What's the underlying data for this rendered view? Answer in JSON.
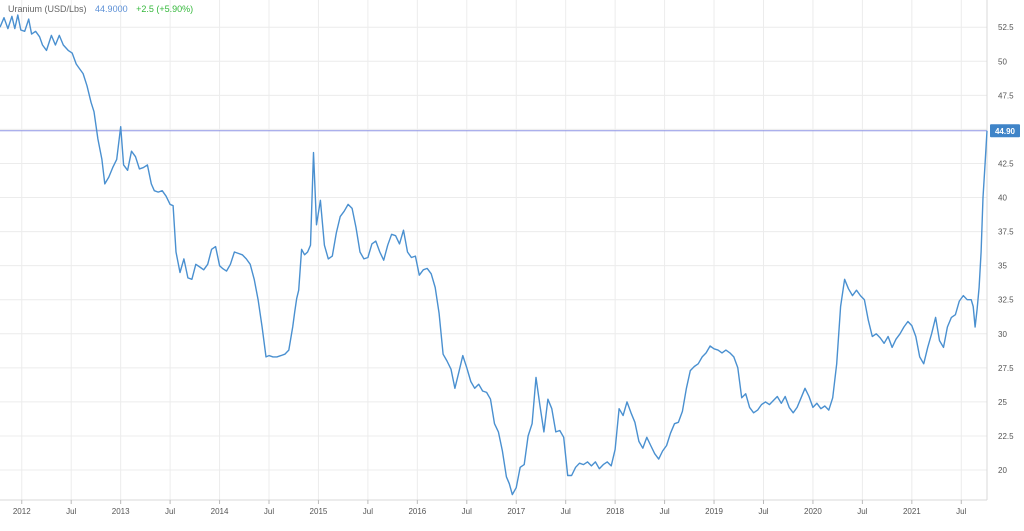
{
  "legend": {
    "name": "Uranium (USD/Lbs)",
    "value": "44.9000",
    "change": "+2.5 (+5.90%)"
  },
  "colors": {
    "line": "#4a90d0",
    "last_line": "#8f95e6",
    "badge": "#3f84c8",
    "grid": "#ececec",
    "change_up": "#34b83b"
  },
  "chart_data": {
    "type": "line",
    "last_value_label": "44.90",
    "last_value": 44.9,
    "ylim": [
      17.8,
      54.5
    ],
    "y_ticks": [
      20,
      22.5,
      25,
      27.5,
      30,
      32.5,
      35,
      37.5,
      40,
      42.5,
      45,
      47.5,
      50,
      52.5
    ],
    "y_tick_labels": [
      "20",
      "22.5",
      "25",
      "27.5",
      "30",
      "32.5",
      "35",
      "37.5",
      "40",
      "42.5",
      "45",
      "47.5",
      "50",
      "52.5"
    ],
    "x_range": [
      2011.78,
      2021.76
    ],
    "x_ticks": [
      2012.0,
      2012.5,
      2013.0,
      2013.5,
      2014.0,
      2014.5,
      2015.0,
      2015.5,
      2016.0,
      2016.5,
      2017.0,
      2017.5,
      2018.0,
      2018.5,
      2019.0,
      2019.5,
      2020.0,
      2020.5,
      2021.0,
      2021.5
    ],
    "x_tick_labels": [
      "2012",
      "Jul",
      "2013",
      "Jul",
      "2014",
      "Jul",
      "2015",
      "Jul",
      "2016",
      "Jul",
      "2017",
      "Jul",
      "2018",
      "Jul",
      "2019",
      "Jul",
      "2020",
      "Jul",
      "2021",
      "Jul"
    ],
    "series": [
      {
        "x": [
          2011.78,
          2011.82,
          2011.86,
          2011.9,
          2011.93,
          2011.96,
          2011.99,
          2012.03,
          2012.07,
          2012.1,
          2012.14,
          2012.18,
          2012.21,
          2012.25,
          2012.3,
          2012.34,
          2012.38,
          2012.42,
          2012.47,
          2012.51,
          2012.55,
          2012.58,
          2012.62,
          2012.66,
          2012.7,
          2012.73,
          2012.77,
          2012.81,
          2012.84,
          2012.88,
          2012.92,
          2012.96,
          2013.0,
          2013.03,
          2013.07,
          2013.11,
          2013.15,
          2013.19,
          2013.23,
          2013.27,
          2013.31,
          2013.34,
          2013.38,
          2013.42,
          2013.46,
          2013.5,
          2013.53,
          2013.56,
          2013.6,
          2013.64,
          2013.68,
          2013.72,
          2013.76,
          2013.8,
          2013.84,
          2013.88,
          2013.92,
          2013.96,
          2014.0,
          2014.03,
          2014.07,
          2014.11,
          2014.15,
          2014.19,
          2014.23,
          2014.27,
          2014.31,
          2014.35,
          2014.39,
          2014.43,
          2014.47,
          2014.5,
          2014.54,
          2014.58,
          2014.62,
          2014.66,
          2014.7,
          2014.74,
          2014.76,
          2014.78,
          2014.8,
          2014.83,
          2014.86,
          2014.89,
          2014.92,
          2014.95,
          2014.98,
          2015.02,
          2015.06,
          2015.1,
          2015.14,
          2015.18,
          2015.22,
          2015.26,
          2015.3,
          2015.34,
          2015.38,
          2015.42,
          2015.46,
          2015.5,
          2015.54,
          2015.58,
          2015.62,
          2015.66,
          2015.7,
          2015.74,
          2015.78,
          2015.82,
          2015.86,
          2015.9,
          2015.94,
          2015.98,
          2016.02,
          2016.06,
          2016.1,
          2016.14,
          2016.18,
          2016.22,
          2016.26,
          2016.3,
          2016.34,
          2016.38,
          2016.42,
          2016.46,
          2016.5,
          2016.54,
          2016.58,
          2016.62,
          2016.66,
          2016.7,
          2016.74,
          2016.78,
          2016.82,
          2016.86,
          2016.9,
          2016.93,
          2016.96,
          2017.0,
          2017.04,
          2017.08,
          2017.12,
          2017.16,
          2017.2,
          2017.24,
          2017.28,
          2017.32,
          2017.36,
          2017.4,
          2017.44,
          2017.48,
          2017.52,
          2017.56,
          2017.6,
          2017.64,
          2017.68,
          2017.72,
          2017.76,
          2017.8,
          2017.84,
          2017.88,
          2017.92,
          2017.96,
          2018.0,
          2018.04,
          2018.08,
          2018.12,
          2018.16,
          2018.2,
          2018.24,
          2018.28,
          2018.32,
          2018.36,
          2018.4,
          2018.44,
          2018.48,
          2018.52,
          2018.56,
          2018.6,
          2018.64,
          2018.68,
          2018.72,
          2018.76,
          2018.8,
          2018.84,
          2018.88,
          2018.92,
          2018.96,
          2019.0,
          2019.04,
          2019.08,
          2019.12,
          2019.16,
          2019.2,
          2019.24,
          2019.28,
          2019.32,
          2019.36,
          2019.4,
          2019.44,
          2019.48,
          2019.52,
          2019.56,
          2019.6,
          2019.64,
          2019.68,
          2019.72,
          2019.76,
          2019.8,
          2019.84,
          2019.88,
          2019.92,
          2019.96,
          2020.0,
          2020.04,
          2020.08,
          2020.12,
          2020.16,
          2020.2,
          2020.24,
          2020.28,
          2020.32,
          2020.36,
          2020.4,
          2020.44,
          2020.48,
          2020.52,
          2020.56,
          2020.6,
          2020.64,
          2020.68,
          2020.72,
          2020.76,
          2020.8,
          2020.84,
          2020.88,
          2020.92,
          2020.96,
          2021.0,
          2021.04,
          2021.08,
          2021.12,
          2021.16,
          2021.2,
          2021.24,
          2021.28,
          2021.32,
          2021.36,
          2021.4,
          2021.44,
          2021.48,
          2021.52,
          2021.56,
          2021.6,
          2021.62,
          2021.64,
          2021.66,
          2021.68,
          2021.7,
          2021.72,
          2021.74,
          2021.76
        ],
        "y": [
          52.5,
          53.2,
          52.4,
          53.3,
          52.4,
          53.4,
          52.3,
          52.2,
          53.1,
          52.0,
          52.2,
          51.8,
          51.2,
          50.8,
          51.9,
          51.2,
          51.9,
          51.2,
          50.8,
          50.6,
          49.8,
          49.5,
          49.1,
          48.2,
          47.0,
          46.3,
          44.3,
          42.8,
          41.0,
          41.5,
          42.2,
          42.8,
          45.2,
          42.4,
          42.0,
          43.4,
          43.0,
          42.1,
          42.2,
          42.4,
          41.0,
          40.5,
          40.4,
          40.5,
          40.1,
          39.5,
          39.4,
          36.0,
          34.5,
          35.5,
          34.1,
          34.0,
          35.1,
          34.9,
          34.7,
          35.1,
          36.2,
          36.4,
          35.0,
          34.8,
          34.6,
          35.1,
          36.0,
          35.9,
          35.8,
          35.5,
          35.1,
          34.0,
          32.5,
          30.5,
          28.3,
          28.4,
          28.3,
          28.3,
          28.4,
          28.5,
          28.8,
          30.5,
          31.6,
          32.6,
          33.2,
          36.2,
          35.8,
          36.0,
          36.5,
          43.3,
          38.0,
          39.8,
          36.5,
          35.5,
          35.7,
          37.4,
          38.6,
          39.0,
          39.5,
          39.2,
          37.8,
          36.0,
          35.5,
          35.6,
          36.6,
          36.8,
          36.0,
          35.4,
          36.5,
          37.3,
          37.2,
          36.6,
          37.6,
          36.0,
          35.6,
          35.7,
          34.3,
          34.7,
          34.8,
          34.4,
          33.4,
          31.5,
          28.5,
          28.0,
          27.4,
          26.0,
          27.2,
          28.4,
          27.5,
          26.5,
          26.0,
          26.3,
          25.8,
          25.7,
          25.2,
          23.4,
          22.8,
          21.4,
          19.5,
          19.0,
          18.2,
          18.7,
          20.2,
          20.4,
          22.5,
          23.4,
          26.8,
          24.7,
          22.8,
          25.2,
          24.5,
          22.8,
          22.9,
          22.4,
          19.6,
          19.6,
          20.2,
          20.5,
          20.4,
          20.6,
          20.3,
          20.6,
          20.1,
          20.4,
          20.6,
          20.3,
          21.5,
          24.5,
          24.0,
          25.0,
          24.2,
          23.5,
          22.1,
          21.6,
          22.4,
          21.8,
          21.2,
          20.8,
          21.4,
          21.8,
          22.7,
          23.4,
          23.5,
          24.3,
          26.0,
          27.3,
          27.6,
          27.8,
          28.3,
          28.6,
          29.1,
          28.9,
          28.8,
          28.6,
          28.8,
          28.6,
          28.3,
          27.5,
          25.3,
          25.6,
          24.6,
          24.2,
          24.4,
          24.8,
          25.0,
          24.8,
          25.1,
          25.4,
          24.9,
          25.4,
          24.6,
          24.2,
          24.6,
          25.3,
          26.0,
          25.4,
          24.6,
          24.9,
          24.5,
          24.7,
          24.4,
          25.3,
          27.8,
          32.0,
          34.0,
          33.3,
          32.8,
          33.2,
          32.8,
          32.5,
          31.0,
          29.8,
          30.0,
          29.7,
          29.3,
          29.8,
          29.0,
          29.6,
          30.0,
          30.5,
          30.9,
          30.6,
          29.8,
          28.3,
          27.8,
          29.0,
          30.0,
          31.2,
          29.5,
          29.0,
          30.5,
          31.2,
          31.4,
          32.4,
          32.8,
          32.5,
          32.5,
          32.0,
          30.5,
          31.8,
          33.4,
          36.0,
          40.0,
          42.4,
          44.9
        ]
      }
    ]
  }
}
